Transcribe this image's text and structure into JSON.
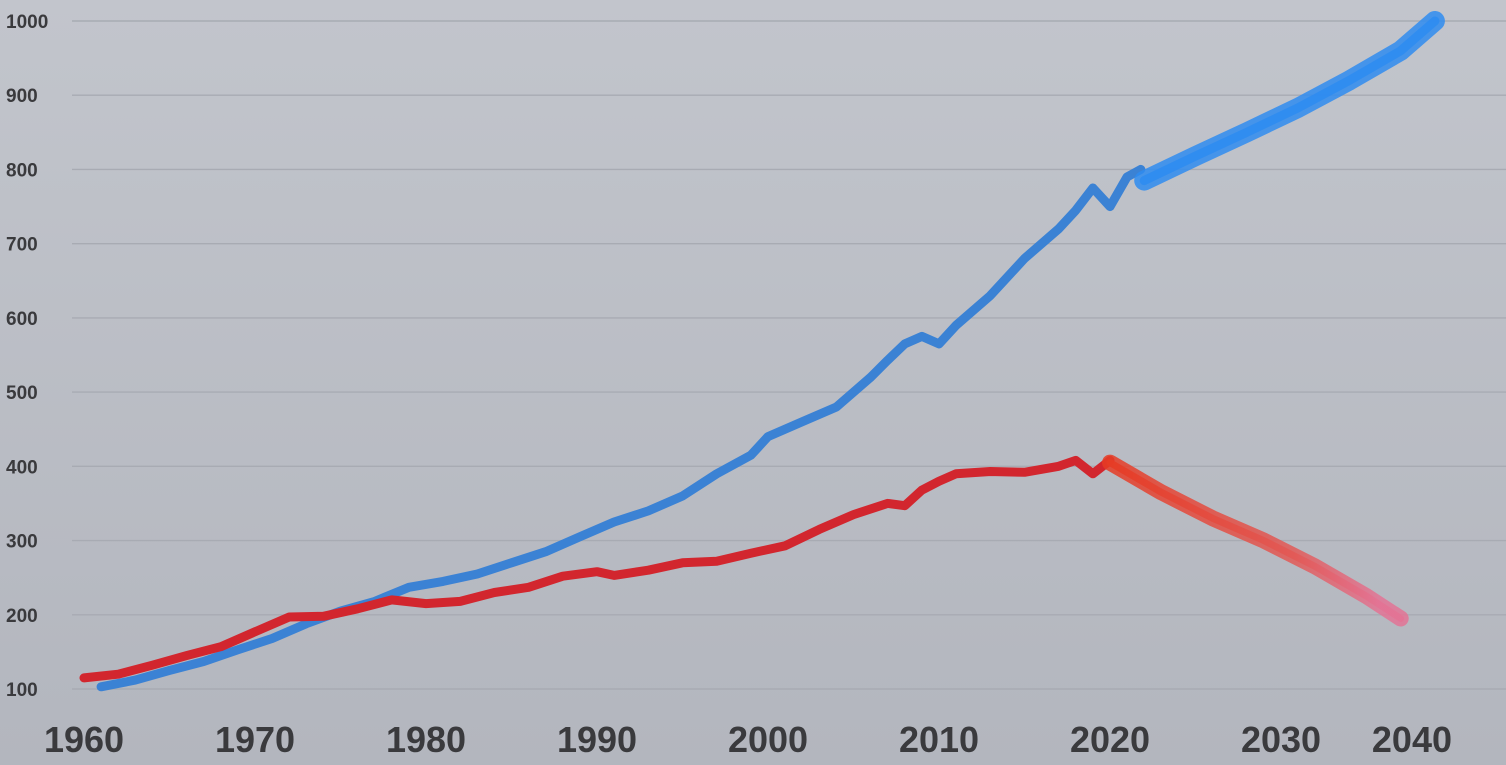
{
  "chart_data": {
    "type": "line",
    "title": "",
    "xlabel": "",
    "ylabel": "",
    "xlim": [
      1960,
      2040
    ],
    "ylim": [
      100,
      1000
    ],
    "x_ticks": [
      1960,
      1970,
      1980,
      1990,
      2000,
      2010,
      2020,
      2030,
      2040
    ],
    "y_ticks": [
      100,
      200,
      300,
      400,
      500,
      600,
      700,
      800,
      900,
      1000
    ],
    "grid": "horizontal",
    "colors": {
      "background": "#b9bcc3",
      "grid": "#a8abb3",
      "tick_text": "#3a3a3d",
      "blue_actual": "#3b82d4",
      "blue_projection": "#2f8cf0",
      "red_actual": "#d2262e",
      "red_projection": "#e8502e",
      "red_projection_end": "#e06a86"
    },
    "series": [
      {
        "name": "blue-actual",
        "style": "actual",
        "color": "#3b82d4",
        "x": [
          1961,
          1963,
          1965,
          1967,
          1969,
          1971,
          1973,
          1975,
          1977,
          1979,
          1981,
          1983,
          1985,
          1987,
          1989,
          1991,
          1993,
          1995,
          1997,
          1999,
          2000,
          2002,
          2004,
          2006,
          2007,
          2008,
          2009,
          2010,
          2011,
          2013,
          2015,
          2017,
          2018,
          2019,
          2020,
          2021,
          2021.8
        ],
        "values": [
          103,
          112,
          125,
          137,
          153,
          168,
          188,
          205,
          218,
          237,
          245,
          255,
          270,
          285,
          305,
          325,
          340,
          360,
          390,
          415,
          440,
          460,
          480,
          520,
          543,
          565,
          575,
          565,
          590,
          630,
          680,
          720,
          745,
          775,
          750,
          790,
          800
        ]
      },
      {
        "name": "blue-projection",
        "style": "projection",
        "color": "#2f8cf0",
        "x": [
          2022,
          2025,
          2028,
          2031,
          2034,
          2037,
          2039
        ],
        "values": [
          785,
          818,
          850,
          883,
          920,
          960,
          1000
        ]
      },
      {
        "name": "red-actual",
        "style": "actual",
        "color": "#d2262e",
        "x": [
          1960,
          1962,
          1964,
          1966,
          1968,
          1970,
          1972,
          1974,
          1976,
          1978,
          1980,
          1982,
          1984,
          1986,
          1988,
          1990,
          1991,
          1993,
          1995,
          1997,
          1999,
          2001,
          2003,
          2005,
          2007,
          2008,
          2009,
          2010,
          2011,
          2013,
          2015,
          2017,
          2018,
          2019,
          2020
        ],
        "values": [
          115,
          120,
          132,
          145,
          157,
          177,
          197,
          198,
          208,
          220,
          215,
          218,
          230,
          237,
          252,
          258,
          253,
          260,
          270,
          272,
          283,
          293,
          315,
          335,
          350,
          347,
          368,
          380,
          390,
          393,
          392,
          400,
          408,
          390,
          408
        ]
      },
      {
        "name": "red-projection",
        "style": "projection",
        "color": "#e8502e",
        "x": [
          2020,
          2023,
          2026,
          2029,
          2032,
          2035,
          2037
        ],
        "values": [
          405,
          365,
          330,
          300,
          265,
          225,
          195
        ]
      }
    ]
  }
}
